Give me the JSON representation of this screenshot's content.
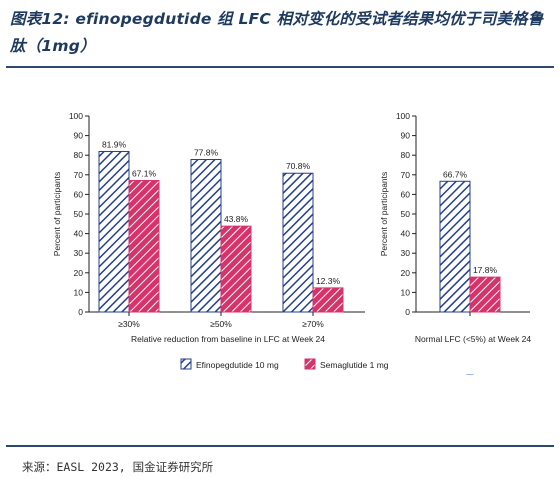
{
  "header": {
    "title": "图表12: efinopegdutide 组 LFC 相对变化的受试者结果均优于司美格鲁肽（1mg）"
  },
  "footer": {
    "source": "来源：EASL 2023, 国金证券研究所"
  },
  "colors": {
    "efinopegdutide": "#233f8e",
    "semaglutide": "#d6336b",
    "rule": "#2d4a6e"
  },
  "chart_data": [
    {
      "type": "bar",
      "categories": [
        "≥30%",
        "≥50%",
        "≥70%"
      ],
      "xlabel": "Relative reduction from baseline in LFC at Week 24",
      "ylabel": "Percent of participants",
      "ylim": [
        0,
        100
      ],
      "yticks": [
        0,
        10,
        20,
        30,
        40,
        50,
        60,
        70,
        80,
        90,
        100
      ],
      "series": [
        {
          "name": "Efinopegdutide 10 mg",
          "values": [
            81.9,
            77.8,
            70.8
          ],
          "labels": [
            "81.9%",
            "77.8%",
            "70.8%"
          ]
        },
        {
          "name": "Semaglutide 1 mg",
          "values": [
            67.1,
            43.8,
            12.3
          ],
          "labels": [
            "67.1%",
            "43.8%",
            "12.3%"
          ]
        }
      ]
    },
    {
      "type": "bar",
      "categories": [
        ""
      ],
      "xlabel": "Normal LFC (<5%) at Week 24",
      "ylabel": "Percent of participants",
      "ylim": [
        0,
        100
      ],
      "yticks": [
        0,
        10,
        20,
        30,
        40,
        50,
        60,
        70,
        80,
        90,
        100
      ],
      "series": [
        {
          "name": "Efinopegdutide 10 mg",
          "values": [
            66.7
          ],
          "labels": [
            "66.7%"
          ]
        },
        {
          "name": "Semaglutide 1 mg",
          "values": [
            17.8
          ],
          "labels": [
            "17.8%"
          ]
        }
      ]
    }
  ],
  "legend": {
    "position": "bottom",
    "items": [
      "Efinopegdutide 10 mg",
      "Semaglutide 1 mg"
    ]
  }
}
